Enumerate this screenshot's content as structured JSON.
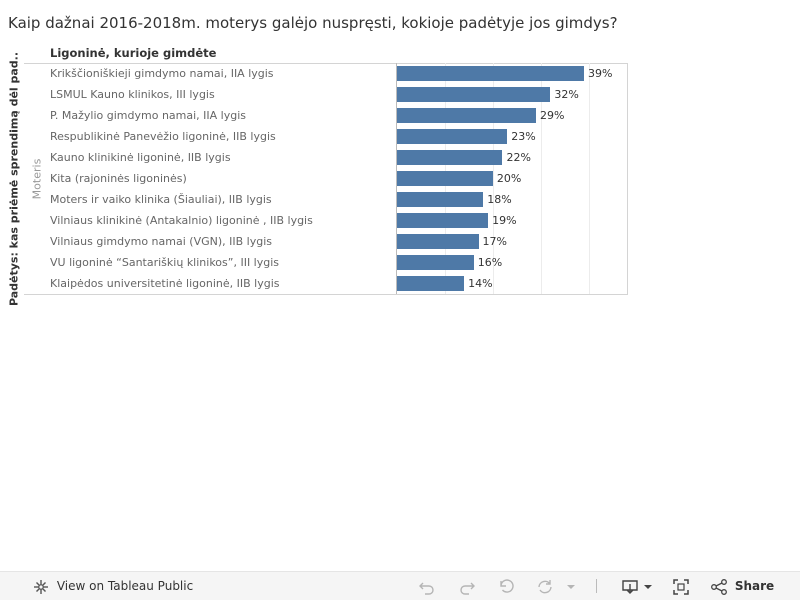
{
  "title": "Kaip dažnai 2016-2018m. moterys galėjo nuspręsti, kokioje padėtyje jos gimdys?",
  "column_header": "Ligoninė, kurioje gimdėte",
  "row_axis_label": "Padėtys: kas priėmė sprendimą dėl pad..",
  "row_dimension_value": "Moteris",
  "chart_data": {
    "type": "bar",
    "orientation": "horizontal",
    "categories": [
      "Krikščioniškieji gimdymo namai, IIA lygis",
      "LSMUL Kauno klinikos, III lygis",
      "P. Mažylio gimdymo namai, IIA lygis",
      "Respublikinė Panevėžio ligoninė, IIB lygis",
      "Kauno klinikinė ligoninė, IIB lygis",
      "Kita (rajoninės ligoninės)",
      "Moters ir vaiko klinika (Šiauliai), IIB lygis",
      "Vilniaus klinikinė (Antakalnio) ligoninė , IIB lygis",
      "Vilniaus gimdymo namai (VGN), IIB lygis",
      "VU ligoninė “Santariškių klinikos”, III lygis",
      "Klaipėdos universitetinė ligoninė, IIB lygis"
    ],
    "values": [
      39,
      32,
      29,
      23,
      22,
      20,
      18,
      19,
      17,
      16,
      14
    ],
    "value_labels": [
      "39%",
      "32%",
      "29%",
      "23%",
      "22%",
      "20%",
      "18%",
      "19%",
      "17%",
      "16%",
      "14%"
    ],
    "xlim": [
      0,
      48
    ],
    "bar_color": "#4e79a7"
  },
  "toolbar": {
    "view_label": "View on Tableau Public",
    "share_label": "Share",
    "icons": [
      "tableau-logo-icon",
      "undo-icon",
      "redo-icon",
      "revert-icon",
      "refresh-icon",
      "dropdown-caret-icon",
      "download-icon",
      "fullscreen-icon",
      "share-icon"
    ]
  }
}
